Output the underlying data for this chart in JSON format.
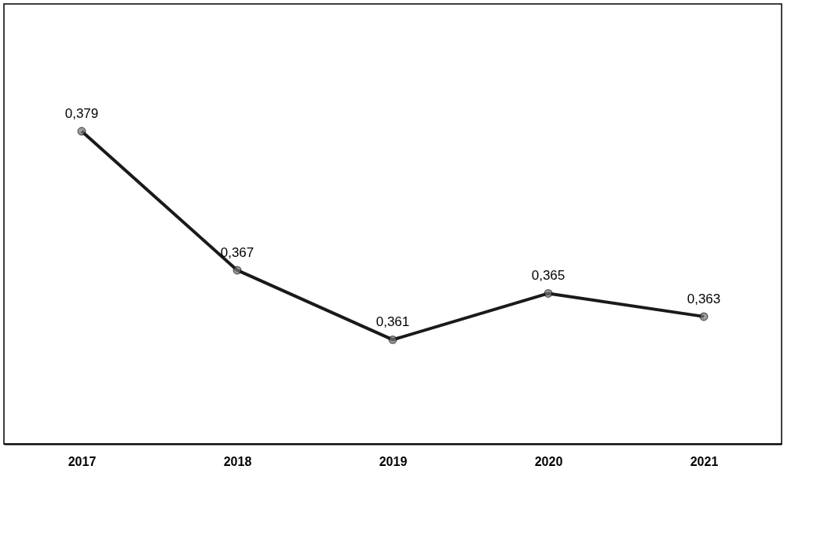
{
  "chart_data": {
    "type": "line",
    "categories": [
      "2017",
      "2018",
      "2019",
      "2020",
      "2021"
    ],
    "series": [
      {
        "color": "#1a1a1a",
        "values": [
          0.379,
          0.367,
          0.361,
          0.365,
          0.363
        ],
        "value_labels": [
          "0,379",
          "0,367",
          "0,361",
          "0,365",
          "0,363"
        ]
      }
    ],
    "ylim": [
      0.352,
      0.39
    ],
    "tick_labels": "x",
    "grid": false,
    "marker": "circle",
    "line_style": "solid"
  }
}
